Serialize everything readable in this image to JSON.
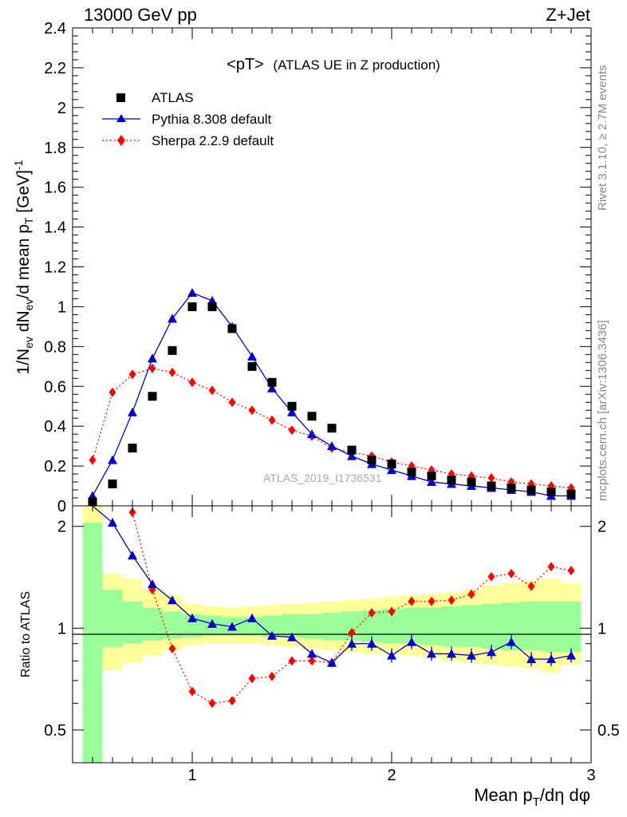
{
  "header": {
    "left": "13000 GeV pp",
    "right": "Z+Jet"
  },
  "side_labels": {
    "rivet": "Rivet 3.1.10, ≥ 2.7M events",
    "mcplots": "mcplots.cern.ch [arXiv:1306.3436]"
  },
  "watermark": "ATLAS_2019_I1736531",
  "chart_data": [
    {
      "type": "scatter",
      "title": "<pT>",
      "subtitle": "(ATLAS UE in Z production)",
      "ylabel": "1/N_ev dN_ev/d mean p_T [GeV]^-1",
      "ylabel_parts": {
        "a": "1/N",
        "b": "ev",
        "c": " dN",
        "d": "ev",
        "e": "/d mean p",
        "f": "T",
        "g": " [GeV]",
        "h": "-1"
      },
      "xlim": [
        0.4,
        3.0
      ],
      "ylim": [
        0,
        2.4
      ],
      "y_ticks": [
        "0",
        "0.2",
        "0.4",
        "0.6",
        "0.8",
        "1",
        "1.2",
        "1.4",
        "1.6",
        "1.8",
        "2",
        "2.2",
        "2.4"
      ],
      "legend_position": "top-left",
      "series": [
        {
          "name": "ATLAS",
          "style": "square",
          "color": "#000000",
          "x": [
            0.5,
            0.6,
            0.7,
            0.8,
            0.9,
            1.0,
            1.1,
            1.2,
            1.3,
            1.4,
            1.5,
            1.6,
            1.7,
            1.8,
            1.9,
            2.0,
            2.1,
            2.2,
            2.3,
            2.4,
            2.5,
            2.6,
            2.7,
            2.8,
            2.9
          ],
          "y": [
            0.02,
            0.11,
            0.29,
            0.55,
            0.78,
            1.0,
            1.0,
            0.89,
            0.7,
            0.62,
            0.5,
            0.45,
            0.39,
            0.28,
            0.23,
            0.21,
            0.17,
            0.15,
            0.13,
            0.12,
            0.1,
            0.09,
            0.08,
            0.07,
            0.06
          ]
        },
        {
          "name": "Pythia 8.308 default",
          "style": "triangle-line",
          "color": "#0000cc",
          "x": [
            0.5,
            0.6,
            0.7,
            0.8,
            0.9,
            1.0,
            1.1,
            1.2,
            1.3,
            1.4,
            1.5,
            1.6,
            1.7,
            1.8,
            1.9,
            2.0,
            2.1,
            2.2,
            2.3,
            2.4,
            2.5,
            2.6,
            2.7,
            2.8,
            2.9
          ],
          "y": [
            0.05,
            0.23,
            0.47,
            0.74,
            0.94,
            1.07,
            1.03,
            0.9,
            0.75,
            0.59,
            0.47,
            0.36,
            0.3,
            0.25,
            0.21,
            0.18,
            0.15,
            0.12,
            0.11,
            0.1,
            0.09,
            0.08,
            0.07,
            0.05,
            0.05
          ]
        },
        {
          "name": "Sherpa 2.2.9 default",
          "style": "diamond-dotted",
          "color": "#ff0000",
          "x": [
            0.5,
            0.6,
            0.7,
            0.8,
            0.9,
            1.0,
            1.1,
            1.2,
            1.3,
            1.4,
            1.5,
            1.6,
            1.7,
            1.8,
            1.9,
            2.0,
            2.1,
            2.2,
            2.3,
            2.4,
            2.5,
            2.6,
            2.7,
            2.8,
            2.9
          ],
          "y": [
            0.23,
            0.57,
            0.66,
            0.69,
            0.67,
            0.62,
            0.58,
            0.52,
            0.48,
            0.43,
            0.38,
            0.35,
            0.29,
            0.27,
            0.25,
            0.22,
            0.2,
            0.18,
            0.16,
            0.15,
            0.14,
            0.12,
            0.11,
            0.1,
            0.09
          ]
        }
      ]
    },
    {
      "type": "line",
      "ylabel": "Ratio to ATLAS",
      "xlabel_parts": {
        "a": "Mean p",
        "b": "T",
        "c": "/dη dφ"
      },
      "xlim": [
        0.4,
        3.0
      ],
      "ylim": [
        0.4,
        2.3
      ],
      "y_scale": "log",
      "x_ticks": [
        "1",
        "2",
        "3"
      ],
      "y_ticks": [
        "0.5",
        "1",
        "2"
      ],
      "reference": 1.0,
      "bands": {
        "edges": [
          0.45,
          0.55,
          0.65,
          0.75,
          0.85,
          0.95,
          1.05,
          1.15,
          1.25,
          1.35,
          1.45,
          1.55,
          1.65,
          1.75,
          1.85,
          1.95,
          2.05,
          2.15,
          2.25,
          2.35,
          2.45,
          2.55,
          2.65,
          2.75,
          2.85,
          2.95
        ],
        "green_hi": [
          2.05,
          1.3,
          1.2,
          1.15,
          1.12,
          1.1,
          1.09,
          1.08,
          1.08,
          1.09,
          1.1,
          1.1,
          1.11,
          1.12,
          1.13,
          1.14,
          1.15,
          1.15,
          1.16,
          1.17,
          1.18,
          1.19,
          1.2,
          1.2,
          1.2
        ],
        "green_lo": [
          0.35,
          0.88,
          0.9,
          0.92,
          0.93,
          0.94,
          0.95,
          0.95,
          0.95,
          0.94,
          0.94,
          0.93,
          0.92,
          0.92,
          0.91,
          0.9,
          0.9,
          0.89,
          0.88,
          0.88,
          0.87,
          0.86,
          0.86,
          0.85,
          0.85
        ],
        "yellow_hi": [
          2.5,
          1.45,
          1.4,
          1.3,
          1.25,
          1.18,
          1.16,
          1.15,
          1.16,
          1.17,
          1.18,
          1.19,
          1.2,
          1.21,
          1.22,
          1.24,
          1.25,
          1.26,
          1.27,
          1.3,
          1.34,
          1.36,
          1.38,
          1.4,
          1.36
        ],
        "yellow_lo": [
          0.35,
          0.75,
          0.79,
          0.83,
          0.86,
          0.89,
          0.9,
          0.9,
          0.9,
          0.89,
          0.88,
          0.87,
          0.86,
          0.85,
          0.84,
          0.84,
          0.83,
          0.82,
          0.8,
          0.79,
          0.78,
          0.77,
          0.76,
          0.74,
          0.78
        ]
      },
      "series": [
        {
          "name": "Pythia 8.308 default",
          "color": "#0000cc",
          "x": [
            0.6,
            0.7,
            0.8,
            0.9,
            1.0,
            1.1,
            1.2,
            1.3,
            1.4,
            1.5,
            1.6,
            1.7,
            1.8,
            1.9,
            2.0,
            2.1,
            2.2,
            2.3,
            2.4,
            2.5,
            2.6,
            2.7,
            2.8,
            2.9
          ],
          "y": [
            2.05,
            1.64,
            1.35,
            1.21,
            1.07,
            1.03,
            1.01,
            1.07,
            0.95,
            0.94,
            0.84,
            0.79,
            0.9,
            0.9,
            0.83,
            0.91,
            0.84,
            0.84,
            0.83,
            0.85,
            0.91,
            0.81,
            0.81,
            0.83
          ]
        },
        {
          "name": "Sherpa 2.2.9 default",
          "color": "#ff0000",
          "x": [
            0.7,
            0.8,
            0.9,
            1.0,
            1.1,
            1.2,
            1.3,
            1.4,
            1.5,
            1.6,
            1.7,
            1.8,
            1.9,
            2.0,
            2.1,
            2.2,
            2.3,
            2.4,
            2.5,
            2.6,
            2.7,
            2.8,
            2.9
          ],
          "y": [
            2.2,
            1.3,
            0.87,
            0.65,
            0.6,
            0.61,
            0.71,
            0.72,
            0.8,
            0.8,
            0.79,
            0.97,
            1.11,
            1.12,
            1.2,
            1.2,
            1.21,
            1.26,
            1.42,
            1.45,
            1.33,
            1.52,
            1.48
          ]
        }
      ]
    }
  ]
}
